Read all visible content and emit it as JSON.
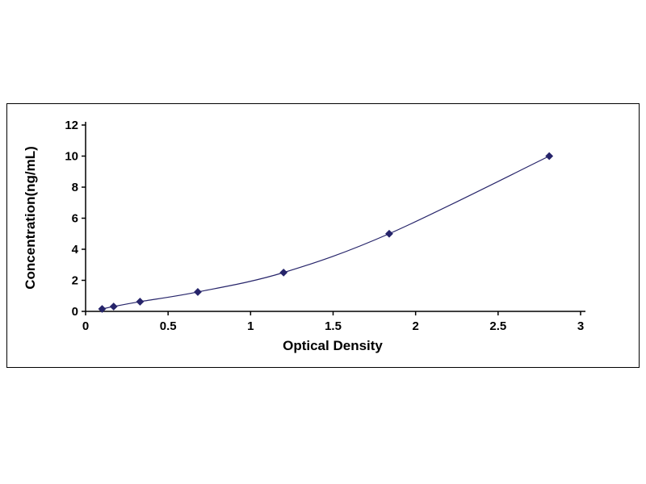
{
  "chart_data": {
    "type": "line",
    "title": "",
    "xlabel": "Optical Density",
    "ylabel": "Concentration(ng/mL)",
    "x": [
      0.1,
      0.17,
      0.33,
      0.68,
      1.2,
      1.84,
      2.81
    ],
    "y": [
      0.156,
      0.312,
      0.625,
      1.25,
      2.5,
      5.0,
      10.0
    ],
    "xlim": [
      0,
      3
    ],
    "ylim": [
      0,
      12
    ],
    "xticks": [
      0,
      0.5,
      1,
      1.5,
      2,
      2.5,
      3
    ],
    "xtick_labels": [
      "0",
      "0.5",
      "1",
      "1.5",
      "2",
      "2.5",
      "3"
    ],
    "yticks": [
      0,
      2,
      4,
      6,
      8,
      10,
      12
    ],
    "ytick_labels": [
      "0",
      "2",
      "4",
      "6",
      "8",
      "10",
      "12"
    ],
    "grid": false,
    "legend": "none",
    "marker": "diamond",
    "colors": {
      "line": "#26246a",
      "marker": "#26246a",
      "axis": "#000000",
      "frame_border": "#000000",
      "background": "#ffffff"
    }
  }
}
